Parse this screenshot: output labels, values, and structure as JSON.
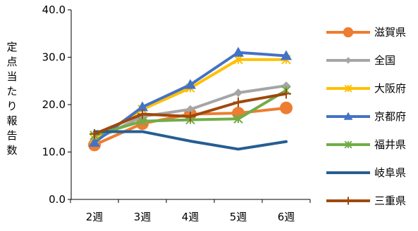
{
  "chart_data": {
    "type": "line",
    "title": "",
    "xlabel": "",
    "ylabel": "定点当たり報告数",
    "ylim": [
      0,
      40
    ],
    "yticks": [
      "0.0",
      "10.0",
      "20.0",
      "30.0",
      "40.0"
    ],
    "categories": [
      "2週",
      "3週",
      "4週",
      "5週",
      "6週"
    ],
    "grid": false,
    "legend_position": "right",
    "series": [
      {
        "name": "滋賀県",
        "color": "#ED7D31",
        "marker": "circle",
        "values": [
          11.5,
          16.0,
          18.0,
          18.2,
          19.3
        ]
      },
      {
        "name": "全国",
        "color": "#A5A5A5",
        "marker": "diamond",
        "values": [
          12.5,
          17.5,
          19.0,
          22.5,
          24.0
        ]
      },
      {
        "name": "大阪府",
        "color": "#FFC000",
        "marker": "asterisk",
        "values": [
          12.8,
          19.0,
          23.5,
          29.5,
          29.5
        ]
      },
      {
        "name": "京都府",
        "color": "#4472C4",
        "marker": "triangle",
        "values": [
          12.0,
          19.5,
          24.2,
          31.0,
          30.3
        ]
      },
      {
        "name": "福井県",
        "color": "#70AD47",
        "marker": "asterisk",
        "values": [
          13.5,
          16.5,
          16.8,
          17.0,
          23.0
        ]
      },
      {
        "name": "岐阜県",
        "color": "#255E91",
        "marker": "none",
        "values": [
          14.3,
          14.3,
          12.3,
          10.6,
          12.2
        ]
      },
      {
        "name": "三重県",
        "color": "#9E480E",
        "marker": "plus",
        "values": [
          13.8,
          18.0,
          17.5,
          20.5,
          22.3
        ]
      }
    ]
  }
}
